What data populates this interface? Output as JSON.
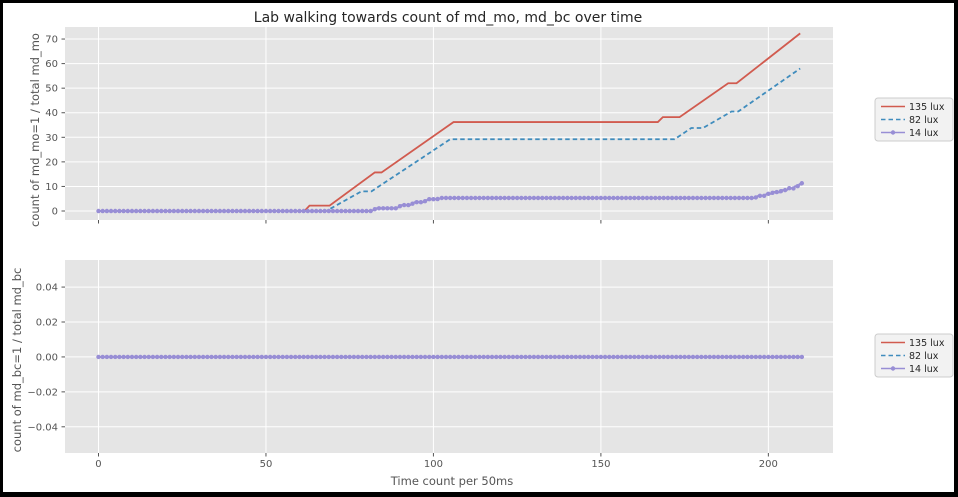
{
  "figure": {
    "title": "Lab walking towards count of md_mo, md_bc over time",
    "xlabel": "Time count per 50ms",
    "background": "#ffffff",
    "axes_background": "#e5e5e5",
    "grid_color": "#ffffff",
    "tick_color": "#555555",
    "label_color": "#555555",
    "title_color": "#262626",
    "legend_background": "#f2f2f2",
    "legend_border": "#cccccc",
    "border_color": "#000000"
  },
  "chart_data": [
    {
      "type": "line",
      "ylabel": "count of md_mo=1 / total md_mo",
      "xlim": [
        -10,
        219.3
      ],
      "ylim": [
        -3.66,
        74.9
      ],
      "xticks": [
        0,
        50,
        100,
        150,
        200
      ],
      "xticklabels": [
        "",
        "",
        "",
        "",
        ""
      ],
      "yticks": [
        0,
        10,
        20,
        30,
        40,
        50,
        60,
        70
      ],
      "yticklabels": [
        "0",
        "10",
        "20",
        "30",
        "40",
        "50",
        "60",
        "70"
      ],
      "grid": true,
      "legend_position": "right-outside",
      "series": [
        {
          "name": "135 lux",
          "color": "#d15b4f",
          "style": "solid",
          "points": [
            [
              0,
              0
            ],
            [
              61.5,
              0
            ],
            [
              63,
              2.2
            ],
            [
              69,
              2.2
            ],
            [
              82.5,
              15.7
            ],
            [
              84.5,
              15.7
            ],
            [
              106,
              36.2
            ],
            [
              167,
              36.2
            ],
            [
              168.5,
              38.2
            ],
            [
              173.5,
              38.2
            ],
            [
              188,
              52
            ],
            [
              190.5,
              52
            ],
            [
              209.5,
              72.3
            ]
          ]
        },
        {
          "name": "82 lux",
          "color": "#3f8cbd",
          "style": "dashed",
          "points": [
            [
              0,
              0
            ],
            [
              68,
              0
            ],
            [
              78.5,
              8
            ],
            [
              81.5,
              8
            ],
            [
              105,
              29.2
            ],
            [
              172,
              29.2
            ],
            [
              177,
              33.8
            ],
            [
              180.5,
              33.8
            ],
            [
              189,
              40.5
            ],
            [
              191,
              40.5
            ],
            [
              209.5,
              58
            ]
          ]
        },
        {
          "name": "14 lux",
          "color": "#988ed5",
          "style": "marker",
          "points": [
            [
              0,
              0
            ],
            [
              81.5,
              0
            ],
            [
              83,
              1.1
            ],
            [
              89,
              1.1
            ],
            [
              90.5,
              2.4
            ],
            [
              93,
              2.4
            ],
            [
              94.5,
              3.6
            ],
            [
              97,
              3.6
            ],
            [
              98.5,
              4.8
            ],
            [
              101,
              4.8
            ],
            [
              102.5,
              5.3
            ],
            [
              196,
              5.3
            ],
            [
              197,
              6.2
            ],
            [
              199,
              6.2
            ],
            [
              199.5,
              7.0
            ],
            [
              201,
              7.0
            ],
            [
              201.5,
              7.8
            ],
            [
              203.5,
              7.6
            ],
            [
              204,
              8.5
            ],
            [
              205.5,
              8.5
            ],
            [
              206,
              9.3
            ],
            [
              207.5,
              9.2
            ],
            [
              208,
              10.1
            ],
            [
              209,
              10.1
            ],
            [
              209.3,
              10.9
            ],
            [
              209.8,
              10.8
            ],
            [
              210,
              11.3
            ]
          ]
        }
      ]
    },
    {
      "type": "line",
      "ylabel": "count of md_bc=1 / total md_bc",
      "xlim": [
        -10,
        219.3
      ],
      "ylim": [
        -0.055,
        0.0555
      ],
      "xticks": [
        0,
        50,
        100,
        150,
        200
      ],
      "xticklabels": [
        "0",
        "50",
        "100",
        "150",
        "200"
      ],
      "yticks": [
        -0.04,
        -0.02,
        0,
        0.02,
        0.04
      ],
      "yticklabels": [
        "−0.04",
        "−0.02",
        "0.00",
        "0.02",
        "0.04"
      ],
      "grid": true,
      "legend_position": "right-outside",
      "series": [
        {
          "name": "135 lux",
          "color": "#d15b4f",
          "style": "solid",
          "points": [
            [
              0,
              0
            ],
            [
              210,
              0
            ]
          ]
        },
        {
          "name": "82 lux",
          "color": "#3f8cbd",
          "style": "dashed",
          "points": [
            [
              0,
              0
            ],
            [
              210,
              0
            ]
          ]
        },
        {
          "name": "14 lux",
          "color": "#988ed5",
          "style": "marker",
          "points": [
            [
              0,
              0
            ],
            [
              210,
              0
            ]
          ]
        }
      ]
    }
  ]
}
